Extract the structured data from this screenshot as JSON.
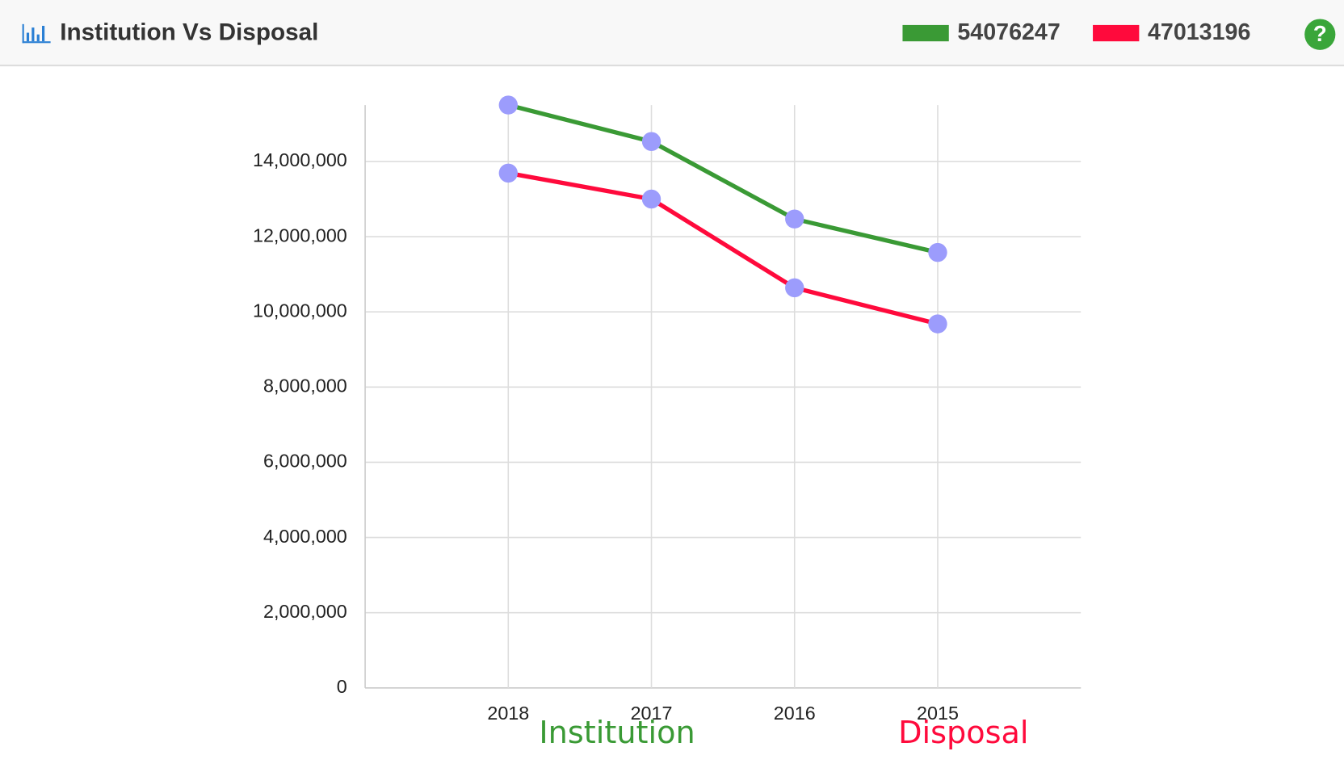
{
  "chart_data": {
    "type": "line",
    "title": "Institution Vs Disposal",
    "categories": [
      "2018",
      "2017",
      "2016",
      "2015"
    ],
    "series": [
      {
        "name": "Institution",
        "color": "#3a9a35",
        "total": 54076247,
        "values": [
          15500000,
          14530000,
          12470000,
          11580000
        ]
      },
      {
        "name": "Disposal",
        "color": "#ff0a3c",
        "total": 47013196,
        "values": [
          13690000,
          13000000,
          10640000,
          9680000
        ]
      }
    ],
    "marker_color": "#9c9cfc",
    "ylim": [
      0,
      15500000
    ],
    "yticks": [
      {
        "value": 0,
        "label": "0"
      },
      {
        "value": 2000000,
        "label": "2,000,000"
      },
      {
        "value": 4000000,
        "label": "4,000,000"
      },
      {
        "value": 6000000,
        "label": "6,000,000"
      },
      {
        "value": 8000000,
        "label": "8,000,000"
      },
      {
        "value": 10000000,
        "label": "10,000,000"
      },
      {
        "value": 12000000,
        "label": "12,000,000"
      },
      {
        "value": 14000000,
        "label": "14,000,000"
      }
    ],
    "grid": true
  }
}
